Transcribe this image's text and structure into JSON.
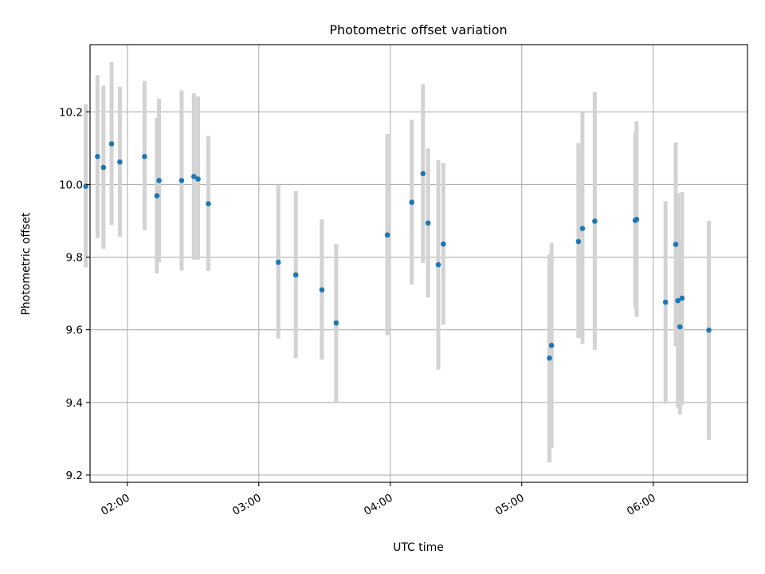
{
  "chart_data": {
    "type": "scatter",
    "title": "Photometric offset variation",
    "xlabel": "UTC time",
    "ylabel": "Photometric offset",
    "x_unit": "UTC time (HH:MM)",
    "xlim": [
      "01:43",
      "06:43"
    ],
    "ylim": [
      9.18,
      10.385
    ],
    "x_ticks": [
      "02:00",
      "03:00",
      "04:00",
      "05:00",
      "06:00"
    ],
    "y_ticks": [
      "9.2",
      "9.4",
      "9.6",
      "9.8",
      "10.0",
      "10.2"
    ],
    "grid": true,
    "point_color": "#1f77b4",
    "errorbar_color": "#d3d3d3",
    "series": [
      {
        "points": [
          {
            "x": "01:41:02",
            "y": 9.995,
            "ylo": 9.772,
            "yhi": 10.221
          },
          {
            "x": "01:46:24",
            "y": 10.077,
            "ylo": 9.852,
            "yhi": 10.301
          },
          {
            "x": "01:49:07",
            "y": 10.047,
            "ylo": 9.823,
            "yhi": 10.272
          },
          {
            "x": "01:52:50",
            "y": 10.112,
            "ylo": 9.888,
            "yhi": 10.337
          },
          {
            "x": "01:56:36",
            "y": 10.062,
            "ylo": 9.856,
            "yhi": 10.269
          },
          {
            "x": "02:07:52",
            "y": 10.077,
            "ylo": 9.874,
            "yhi": 10.285
          },
          {
            "x": "02:13:30",
            "y": 9.969,
            "ylo": 9.755,
            "yhi": 10.183
          },
          {
            "x": "02:14:28",
            "y": 10.011,
            "ylo": 9.786,
            "yhi": 10.236
          },
          {
            "x": "02:24:47",
            "y": 10.011,
            "ylo": 9.763,
            "yhi": 10.259
          },
          {
            "x": "02:30:23",
            "y": 10.022,
            "ylo": 9.793,
            "yhi": 10.251
          },
          {
            "x": "02:32:17",
            "y": 10.015,
            "ylo": 9.793,
            "yhi": 10.242
          },
          {
            "x": "02:37:00",
            "y": 9.947,
            "ylo": 9.762,
            "yhi": 10.134
          },
          {
            "x": "03:08:54",
            "y": 9.786,
            "ylo": 9.576,
            "yhi": 9.999
          },
          {
            "x": "03:16:53",
            "y": 9.751,
            "ylo": 9.522,
            "yhi": 9.982
          },
          {
            "x": "03:28:48",
            "y": 9.71,
            "ylo": 9.518,
            "yhi": 9.904
          },
          {
            "x": "03:35:19",
            "y": 9.619,
            "ylo": 9.402,
            "yhi": 9.836
          },
          {
            "x": "03:58:41",
            "y": 9.861,
            "ylo": 9.585,
            "yhi": 10.139
          },
          {
            "x": "04:09:49",
            "y": 9.951,
            "ylo": 9.724,
            "yhi": 10.178
          },
          {
            "x": "04:14:56",
            "y": 10.03,
            "ylo": 9.784,
            "yhi": 10.277
          },
          {
            "x": "04:17:15",
            "y": 9.894,
            "ylo": 9.689,
            "yhi": 10.099
          },
          {
            "x": "04:21:54",
            "y": 9.779,
            "ylo": 9.49,
            "yhi": 10.067
          },
          {
            "x": "04:24:14",
            "y": 9.836,
            "ylo": 9.614,
            "yhi": 10.059
          },
          {
            "x": "05:12:38",
            "y": 9.522,
            "ylo": 9.235,
            "yhi": 9.807
          },
          {
            "x": "05:13:36",
            "y": 9.557,
            "ylo": 9.275,
            "yhi": 9.839
          },
          {
            "x": "05:25:52",
            "y": 9.843,
            "ylo": 9.577,
            "yhi": 10.114
          },
          {
            "x": "05:27:42",
            "y": 9.879,
            "ylo": 9.561,
            "yhi": 10.198
          },
          {
            "x": "05:33:19",
            "y": 9.899,
            "ylo": 9.545,
            "yhi": 10.255
          },
          {
            "x": "05:51:46",
            "y": 9.901,
            "ylo": 9.66,
            "yhi": 10.144
          },
          {
            "x": "05:52:24",
            "y": 9.904,
            "ylo": 9.636,
            "yhi": 10.174
          },
          {
            "x": "06:05:37",
            "y": 9.676,
            "ylo": 9.397,
            "yhi": 9.954
          },
          {
            "x": "06:10:16",
            "y": 9.835,
            "ylo": 9.555,
            "yhi": 10.116
          },
          {
            "x": "06:11:14",
            "y": 9.68,
            "ylo": 9.386,
            "yhi": 9.976
          },
          {
            "x": "06:12:11",
            "y": 9.608,
            "ylo": 9.367,
            "yhi": 9.848
          },
          {
            "x": "06:13:09",
            "y": 9.687,
            "ylo": 9.393,
            "yhi": 9.979
          },
          {
            "x": "06:25:23",
            "y": 9.599,
            "ylo": 9.297,
            "yhi": 9.9
          }
        ]
      }
    ]
  }
}
